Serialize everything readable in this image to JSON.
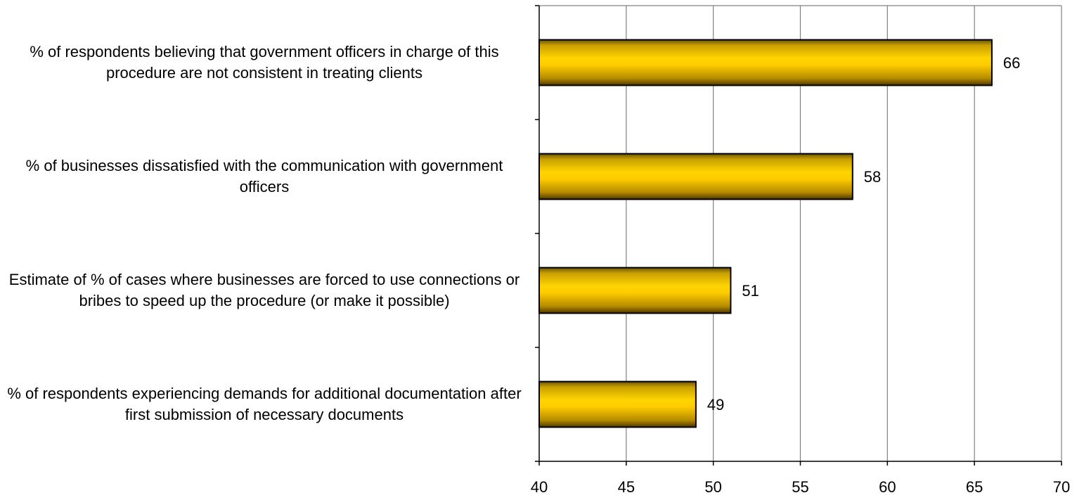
{
  "chart_data": {
    "type": "bar",
    "orientation": "horizontal",
    "categories": [
      "% of respondents believing that government officers in charge of this procedure are not consistent in treating clients",
      "% of businesses dissatisfied with the communication with government officers",
      "Estimate of % of cases where businesses are forced to use connections or bribes to speed up the procedure (or make it possible)",
      "% of respondents experiencing demands for additional documentation after first submission of necessary documents"
    ],
    "values": [
      66,
      58,
      51,
      49
    ],
    "data_labels": [
      "66",
      "58",
      "51",
      "49"
    ],
    "xlim": [
      40,
      70
    ],
    "x_ticks": [
      "40",
      "45",
      "50",
      "55",
      "60",
      "65",
      "70"
    ],
    "grid": "vertical",
    "legend": "none",
    "bar_color": "#f5c400",
    "bar_edge_color": "#000000",
    "title": "",
    "xlabel": "",
    "ylabel": ""
  }
}
